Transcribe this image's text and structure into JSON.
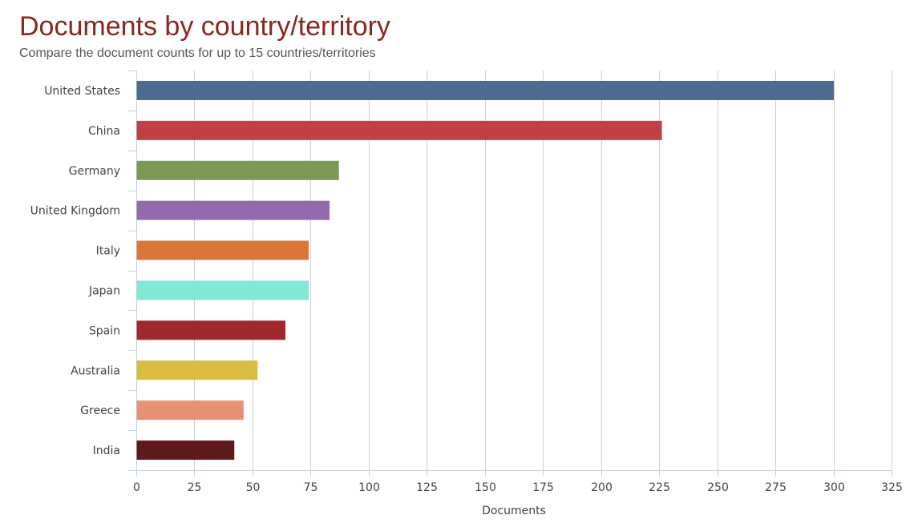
{
  "title": "Documents by country/territory",
  "subtitle": "Compare the document counts for up to 15 countries/territories",
  "chart_data": {
    "type": "bar",
    "orientation": "horizontal",
    "title": "Documents by country/territory",
    "subtitle": "Compare the document counts for up to 15 countries/territories",
    "xlabel": "Documents",
    "ylabel": "",
    "xlim": [
      0,
      325
    ],
    "xticks": [
      0,
      25,
      50,
      75,
      100,
      125,
      150,
      175,
      200,
      225,
      250,
      275,
      300,
      325
    ],
    "grid": true,
    "categories": [
      "United States",
      "China",
      "Germany",
      "United Kingdom",
      "Italy",
      "Japan",
      "Spain",
      "Australia",
      "Greece",
      "India"
    ],
    "values": [
      300,
      226,
      87,
      83,
      74,
      74,
      64,
      52,
      46,
      42
    ],
    "colors": [
      "#4a6d8f",
      "#c04043",
      "#7c9a56",
      "#9569ad",
      "#dc7638",
      "#80e8d4",
      "#a0282b",
      "#d8bd42",
      "#e89073",
      "#5e1a1b"
    ]
  }
}
